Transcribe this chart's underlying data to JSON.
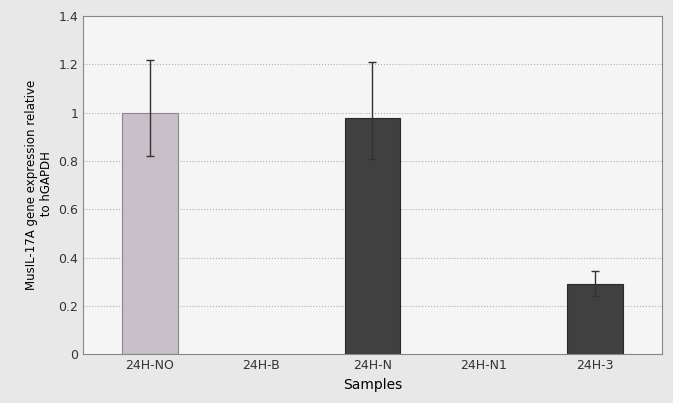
{
  "categories": [
    "24H-NO",
    "24H-B",
    "24H-N",
    "24H-N1",
    "24H-3"
  ],
  "values": [
    1.0,
    0.0,
    0.98,
    0.0,
    0.29
  ],
  "errors_up": [
    0.22,
    0.0,
    0.23,
    0.0,
    0.055
  ],
  "errors_low": [
    0.18,
    0.0,
    0.17,
    0.0,
    0.05
  ],
  "bar_colors": [
    "#c8bfc8",
    "#404040",
    "#404040",
    "#404040",
    "#404040"
  ],
  "bar_edgecolors": [
    "#888888",
    "#282828",
    "#282828",
    "#282828",
    "#282828"
  ],
  "xlabel": "Samples",
  "ylabel": "MusIL-17A gene expression relative\n to hGAPDH",
  "ylim": [
    0,
    1.4
  ],
  "yticks": [
    0,
    0.2,
    0.4,
    0.6,
    0.8,
    1.0,
    1.2,
    1.4
  ],
  "ytick_labels": [
    "0",
    "0.2",
    "0.4",
    "0.6",
    "0.8",
    "1",
    "1.2",
    "1.4"
  ],
  "grid_color": "#b0b0b0",
  "plot_bg_color": "#f5f5f5",
  "fig_bg_color": "#e8e8e8",
  "bar_width": 0.5,
  "capsize": 3,
  "fig_width": 6.73,
  "fig_height": 4.03,
  "dpi": 100,
  "ylabel_fontsize": 8.5,
  "xlabel_fontsize": 10,
  "tick_fontsize": 9
}
